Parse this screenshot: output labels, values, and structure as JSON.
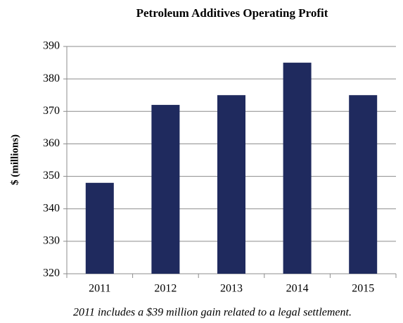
{
  "chart_data": {
    "type": "bar",
    "title": "Petroleum Additives Operating Profit",
    "y_label": "$ (millions)",
    "categories": [
      "2011",
      "2012",
      "2013",
      "2014",
      "2015"
    ],
    "values": [
      348,
      372,
      375,
      385,
      375
    ],
    "color": "#1f2a5e",
    "ylim": [
      320,
      390
    ],
    "yticks": [
      320,
      330,
      340,
      350,
      360,
      370,
      380,
      390
    ],
    "grid": true,
    "footnote": "2011 includes a $39 million gain related to a legal settlement."
  }
}
